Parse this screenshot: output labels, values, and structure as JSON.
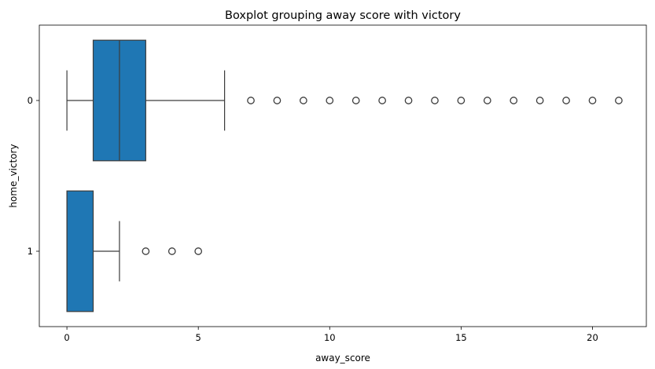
{
  "chart_data": {
    "type": "boxplot",
    "orientation": "horizontal",
    "title": "Boxplot grouping away score with victory",
    "xlabel": "away_score",
    "ylabel": "home_victory",
    "xlim": [
      -1.05,
      22.05
    ],
    "xticks": [
      0,
      5,
      10,
      15,
      20
    ],
    "grid": false,
    "legend": "none",
    "box_color": "#1f77b4",
    "line_color": "#3c3c3c",
    "groups": [
      {
        "category": "0",
        "whisker_low": 0,
        "q1": 1,
        "median": 2,
        "q3": 3,
        "whisker_high": 6,
        "outliers": [
          7,
          8,
          9,
          10,
          11,
          12,
          13,
          14,
          15,
          16,
          17,
          18,
          19,
          20,
          21
        ]
      },
      {
        "category": "1",
        "whisker_low": 0,
        "q1": 0,
        "median": 0,
        "q3": 1,
        "whisker_high": 2,
        "outliers": [
          3,
          4,
          5
        ]
      }
    ]
  }
}
